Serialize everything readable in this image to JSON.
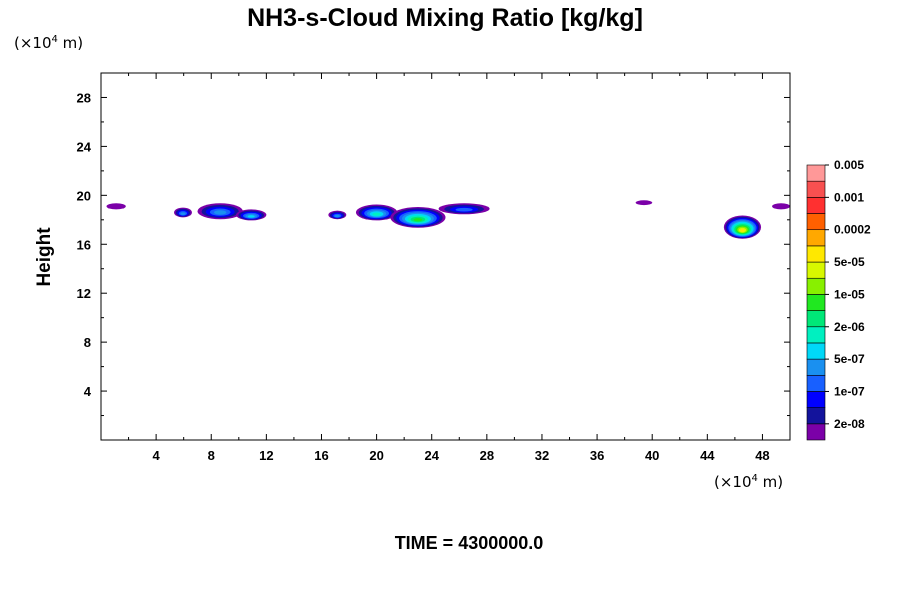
{
  "chart_data": {
    "type": "heatmap",
    "title": "NH3-s-Cloud Mixing Ratio [kg/kg]",
    "ylabel": "Height",
    "x_unit_prefix": "(×10",
    "unit_exp": "4",
    "unit_suffix": " m)",
    "time_label": "TIME = 4300000.0",
    "xlim": [
      0,
      50
    ],
    "ylim": [
      0,
      30
    ],
    "x_ticks": [
      4,
      8,
      12,
      16,
      20,
      24,
      28,
      32,
      36,
      40,
      44,
      48
    ],
    "y_ticks": [
      4,
      8,
      12,
      16,
      20,
      24,
      28
    ],
    "colorbar": {
      "colors": [
        "#7b00a8",
        "#13139c",
        "#0000ff",
        "#1860ff",
        "#1a90f0",
        "#00d8f8",
        "#00f0c0",
        "#00e878",
        "#20e820",
        "#88f000",
        "#d8f800",
        "#ffe800",
        "#ffa800",
        "#ff6000",
        "#ff3030",
        "#f85050",
        "#ff9898"
      ],
      "labels": [
        "2e-08",
        "1e-07",
        "5e-07",
        "2e-06",
        "1e-05",
        "5e-05",
        "0.0002",
        "0.001",
        "0.005"
      ]
    },
    "cloud_blobs": [
      {
        "x0": 0.4,
        "x1": 1.8,
        "y": 19.1,
        "h": 0.5,
        "level": 0
      },
      {
        "x0": 5.3,
        "x1": 6.6,
        "y": 18.6,
        "h": 0.8,
        "level": 4
      },
      {
        "x0": 7.0,
        "x1": 10.3,
        "y": 18.7,
        "h": 1.3,
        "level": 4
      },
      {
        "x0": 9.8,
        "x1": 12.0,
        "y": 18.4,
        "h": 0.9,
        "level": 5
      },
      {
        "x0": 16.5,
        "x1": 17.8,
        "y": 18.4,
        "h": 0.7,
        "level": 4
      },
      {
        "x0": 18.5,
        "x1": 21.5,
        "y": 18.6,
        "h": 1.3,
        "level": 6
      },
      {
        "x0": 21.0,
        "x1": 25.0,
        "y": 18.2,
        "h": 1.7,
        "level": 8
      },
      {
        "x0": 24.5,
        "x1": 28.2,
        "y": 18.9,
        "h": 0.9,
        "level": 3
      },
      {
        "x0": 38.8,
        "x1": 40.0,
        "y": 19.4,
        "h": 0.4,
        "level": 0
      },
      {
        "x0": 45.2,
        "x1": 47.9,
        "y": 17.4,
        "h": 1.9,
        "level": 11
      },
      {
        "x0": 48.7,
        "x1": 50.0,
        "y": 19.1,
        "h": 0.5,
        "level": 0
      }
    ]
  }
}
